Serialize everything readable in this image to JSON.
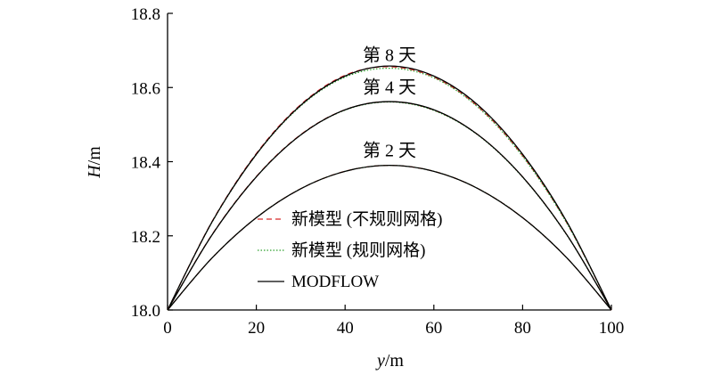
{
  "chart_data": {
    "type": "line",
    "xlabel_var": "y",
    "xlabel_unit": "/m",
    "ylabel_var": "H",
    "ylabel_unit": "/m",
    "xlim": [
      0,
      100
    ],
    "ylim": [
      18.0,
      18.8
    ],
    "xticks": [
      0,
      20,
      40,
      60,
      80,
      100
    ],
    "yticks": [
      18.0,
      18.2,
      18.4,
      18.6,
      18.8
    ],
    "xtick_labels": [
      "0",
      "20",
      "40",
      "60",
      "80",
      "100"
    ],
    "ytick_labels": [
      "18.0",
      "18.2",
      "18.4",
      "18.6",
      "18.8"
    ],
    "grid": false,
    "legend_placement": "lower-left",
    "x": [
      0,
      10,
      20,
      30,
      40,
      50,
      60,
      70,
      80,
      90,
      100
    ],
    "curves": [
      {
        "label": "第 8 天",
        "label_x": 50,
        "label_y": 18.672,
        "series": [
          {
            "name": "新模型 (不规则网格)",
            "style": "dashed",
            "color": "#d62728",
            "values": [
              18.0,
              18.238,
              18.422,
              18.554,
              18.633,
              18.656,
              18.628,
              18.548,
              18.416,
              18.234,
              18.0
            ]
          },
          {
            "name": "新模型 (规则网格)",
            "style": "dotted",
            "color": "#2ca02c",
            "values": [
              18.0,
              18.236,
              18.419,
              18.55,
              18.628,
              18.652,
              18.626,
              18.546,
              18.414,
              18.233,
              18.0
            ]
          },
          {
            "name": "MODFLOW",
            "style": "solid",
            "color": "#000000",
            "values": [
              18.0,
              18.237,
              18.42,
              18.552,
              18.631,
              18.658,
              18.631,
              18.552,
              18.42,
              18.237,
              18.0
            ]
          }
        ]
      },
      {
        "label": "第 4 天",
        "label_x": 50,
        "label_y": 18.585,
        "series": [
          {
            "name": "新模型 (不规则网格)",
            "style": "dashed",
            "color": "#d62728",
            "values": [
              18.0,
              18.203,
              18.36,
              18.473,
              18.54,
              18.562,
              18.539,
              18.472,
              18.359,
              18.202,
              18.0
            ]
          },
          {
            "name": "新模型 (规则网格)",
            "style": "dotted",
            "color": "#2ca02c",
            "values": [
              18.0,
              18.202,
              18.359,
              18.472,
              18.539,
              18.561,
              18.538,
              18.471,
              18.358,
              18.201,
              18.0
            ]
          },
          {
            "name": "MODFLOW",
            "style": "solid",
            "color": "#000000",
            "values": [
              18.0,
              18.202,
              18.359,
              18.472,
              18.54,
              18.562,
              18.54,
              18.472,
              18.359,
              18.202,
              18.0
            ]
          }
        ]
      },
      {
        "label": "第 2 天",
        "label_x": 50,
        "label_y": 18.415,
        "series": [
          {
            "name": "新模型 (不规则网格)",
            "style": "dashed",
            "color": "#d62728",
            "values": [
              18.0,
              18.14,
              18.249,
              18.327,
              18.374,
              18.39,
              18.374,
              18.327,
              18.249,
              18.14,
              18.0
            ]
          },
          {
            "name": "新模型 (规则网格)",
            "style": "dotted",
            "color": "#2ca02c",
            "values": [
              18.0,
              18.14,
              18.249,
              18.327,
              18.374,
              18.39,
              18.374,
              18.327,
              18.249,
              18.14,
              18.0
            ]
          },
          {
            "name": "MODFLOW",
            "style": "solid",
            "color": "#000000",
            "values": [
              18.0,
              18.14,
              18.249,
              18.327,
              18.374,
              18.39,
              18.374,
              18.327,
              18.249,
              18.14,
              18.0
            ]
          }
        ]
      }
    ],
    "legend": [
      {
        "name": "新模型 (不规则网格)",
        "style": "dashed",
        "color": "#d62728"
      },
      {
        "name": "新模型 (规则网格)",
        "style": "dotted",
        "color": "#2ca02c"
      },
      {
        "name": "MODFLOW",
        "style": "solid",
        "color": "#000000"
      }
    ]
  }
}
